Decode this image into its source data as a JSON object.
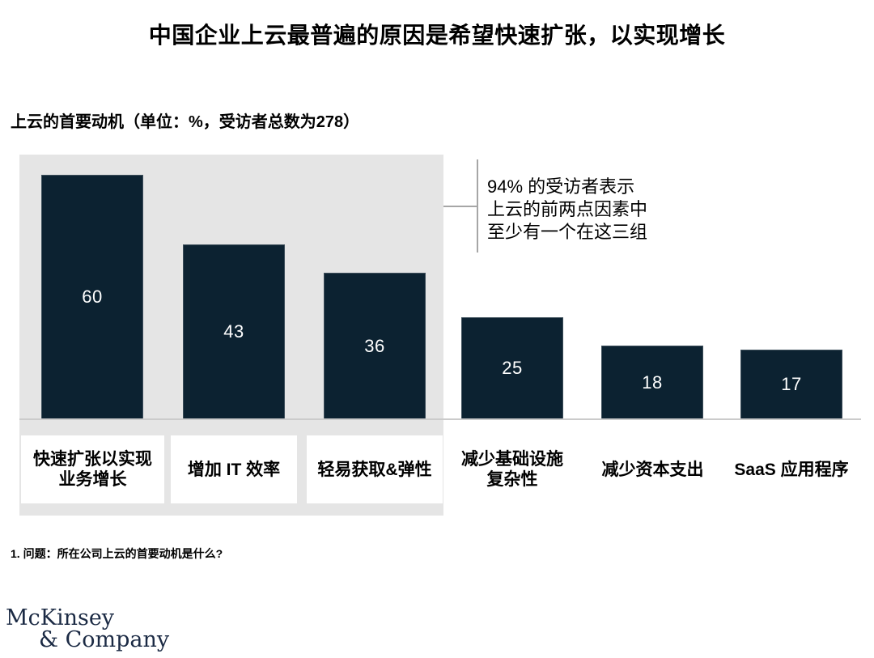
{
  "title": "中国企业上云最普遍的原因是希望快速扩张，以实现增长",
  "subtitle": "上云的首要动机（单位：%，受访者总数为278）",
  "annotation": {
    "lines": [
      "94% 的受访者表示",
      "上云的前两点因素中",
      "至少有一个在这三组"
    ]
  },
  "bars": [
    {
      "value": 60,
      "label_lines": [
        "快速扩张以实现",
        "业务增长"
      ],
      "highlighted": true
    },
    {
      "value": 43,
      "label_lines": [
        "增加 IT 效率"
      ],
      "highlighted": true
    },
    {
      "value": 36,
      "label_lines": [
        "轻易获取&弹性"
      ],
      "highlighted": true
    },
    {
      "value": 25,
      "label_lines": [
        "减少基础设施",
        "复杂性"
      ],
      "highlighted": false
    },
    {
      "value": 18,
      "label_lines": [
        "减少资本支出"
      ],
      "highlighted": false
    },
    {
      "value": 17,
      "label_lines": [
        "SaaS 应用程序"
      ],
      "highlighted": false
    }
  ],
  "footnote": "1. 问题：所在公司上云的首要动机是什么?",
  "logo": {
    "line1": "McKinsey",
    "line2": "& Company"
  },
  "colors": {
    "bar": "#0c2231",
    "panel": "#e5e5e5",
    "axis_line": "#cbcbcb",
    "connector": "#a6a6a6",
    "label_box": "#ffffff",
    "value_text": "#ffffff",
    "logo_navy": "#1b2a44"
  },
  "chart_data": {
    "type": "bar",
    "title": "中国企业上云最普遍的原因是希望快速扩张，以实现增长",
    "subtitle": "上云的首要动机（单位：%，受访者总数为278）",
    "categories": [
      "快速扩张以实现业务增长",
      "增加 IT 效率",
      "轻易获取&弹性",
      "减少基础设施复杂性",
      "减少资本支出",
      "SaaS 应用程序"
    ],
    "values": [
      60,
      43,
      36,
      25,
      18,
      17
    ],
    "unit": "%",
    "respondents_total": 278,
    "highlighted_categories": [
      "快速扩张以实现业务增长",
      "增加 IT 效率",
      "轻易获取&弹性"
    ],
    "annotation": "94% 的受访者表示上云的前两点因素中至少有一个在这三组",
    "footnote": "1. 问题：所在公司上云的首要动机是什么?",
    "xlabel": "",
    "ylabel": "",
    "ylim": [
      0,
      63
    ],
    "grid": false,
    "legend": false,
    "data_labels": "inside-center",
    "source_logo": "McKinsey & Company"
  }
}
